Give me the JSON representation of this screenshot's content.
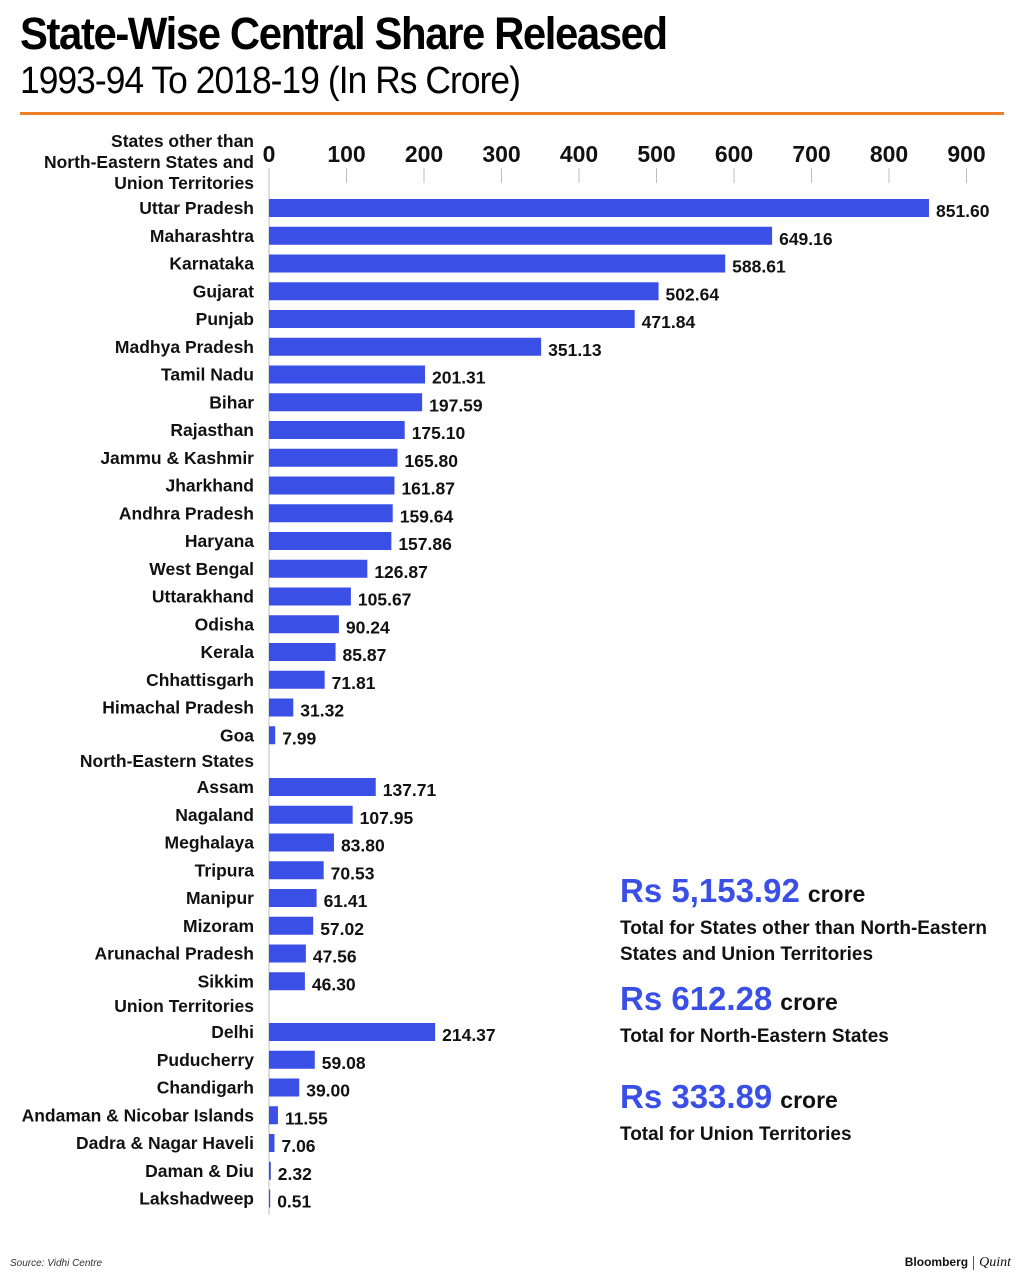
{
  "header": {
    "title": "State-Wise Central Share Released",
    "subtitle": "1993-94 To 2018-19 (In Rs Crore)"
  },
  "colors": {
    "bar": "#3a4fe6",
    "rule": "#f07f2a",
    "accent": "#3a4fe6"
  },
  "chart_data": {
    "type": "bar",
    "orientation": "horizontal",
    "title": "State-Wise Central Share Released",
    "subtitle": "1993-94 To 2018-19 (In Rs Crore)",
    "xlim": [
      0,
      900
    ],
    "xticks": [
      0,
      100,
      200,
      300,
      400,
      500,
      600,
      700,
      800,
      900
    ],
    "groups": [
      {
        "label": "States other than North-Eastern States and Union Territories",
        "label_lines": [
          "States other than",
          "North-Eastern States and",
          "Union Territories"
        ],
        "items": [
          {
            "name": "Uttar Pradesh",
            "value": 851.6,
            "label": "851.60"
          },
          {
            "name": "Maharashtra",
            "value": 649.16,
            "label": "649.16"
          },
          {
            "name": "Karnataka",
            "value": 588.61,
            "label": "588.61"
          },
          {
            "name": "Gujarat",
            "value": 502.64,
            "label": "502.64"
          },
          {
            "name": "Punjab",
            "value": 471.84,
            "label": "471.84"
          },
          {
            "name": "Madhya Pradesh",
            "value": 351.13,
            "label": "351.13"
          },
          {
            "name": "Tamil Nadu",
            "value": 201.31,
            "label": "201.31"
          },
          {
            "name": "Bihar",
            "value": 197.59,
            "label": "197.59"
          },
          {
            "name": "Rajasthan",
            "value": 175.1,
            "label": "175.10"
          },
          {
            "name": "Jammu & Kashmir",
            "value": 165.8,
            "label": "165.80"
          },
          {
            "name": "Jharkhand",
            "value": 161.87,
            "label": "161.87"
          },
          {
            "name": "Andhra Pradesh",
            "value": 159.64,
            "label": "159.64"
          },
          {
            "name": "Haryana",
            "value": 157.86,
            "label": "157.86"
          },
          {
            "name": "West Bengal",
            "value": 126.87,
            "label": "126.87"
          },
          {
            "name": "Uttarakhand",
            "value": 105.67,
            "label": "105.67"
          },
          {
            "name": "Odisha",
            "value": 90.24,
            "label": "90.24"
          },
          {
            "name": "Kerala",
            "value": 85.87,
            "label": "85.87"
          },
          {
            "name": "Chhattisgarh",
            "value": 71.81,
            "label": "71.81"
          },
          {
            "name": "Himachal Pradesh",
            "value": 31.32,
            "label": "31.32"
          },
          {
            "name": "Goa",
            "value": 7.99,
            "label": "7.99"
          }
        ]
      },
      {
        "label": "North-Eastern States",
        "label_lines": [
          "North-Eastern States"
        ],
        "items": [
          {
            "name": "Assam",
            "value": 137.71,
            "label": "137.71"
          },
          {
            "name": "Nagaland",
            "value": 107.95,
            "label": "107.95"
          },
          {
            "name": "Meghalaya",
            "value": 83.8,
            "label": "83.80"
          },
          {
            "name": "Tripura",
            "value": 70.53,
            "label": "70.53"
          },
          {
            "name": "Manipur",
            "value": 61.41,
            "label": "61.41"
          },
          {
            "name": "Mizoram",
            "value": 57.02,
            "label": "57.02"
          },
          {
            "name": "Arunachal Pradesh",
            "value": 47.56,
            "label": "47.56"
          },
          {
            "name": "Sikkim",
            "value": 46.3,
            "label": "46.30"
          }
        ]
      },
      {
        "label": "Union Territories",
        "label_lines": [
          "Union Territories"
        ],
        "items": [
          {
            "name": "Delhi",
            "value": 214.37,
            "label": "214.37"
          },
          {
            "name": "Puducherry",
            "value": 59.08,
            "label": "59.08"
          },
          {
            "name": "Chandigarh",
            "value": 39.0,
            "label": "39.00"
          },
          {
            "name": "Andaman & Nicobar Islands",
            "value": 11.55,
            "label": "11.55"
          },
          {
            "name": "Dadra & Nagar Haveli",
            "value": 7.06,
            "label": "7.06"
          },
          {
            "name": "Daman & Diu",
            "value": 2.32,
            "label": "2.32"
          },
          {
            "name": "Lakshadweep",
            "value": 0.51,
            "label": "0.51"
          }
        ]
      }
    ]
  },
  "totals": [
    {
      "amount": "Rs 5,153.92",
      "unit": "crore",
      "desc": "Total for States other than North-Eastern States and Union Territories"
    },
    {
      "amount": "Rs 612.28",
      "unit": "crore",
      "desc": "Total for North-Eastern States"
    },
    {
      "amount": "Rs 333.89",
      "unit": "crore",
      "desc": "Total for Union Territories"
    }
  ],
  "footer": {
    "source": "Source: Vidhi Centre",
    "brand_primary": "Bloomberg",
    "brand_secondary": "Quint"
  }
}
